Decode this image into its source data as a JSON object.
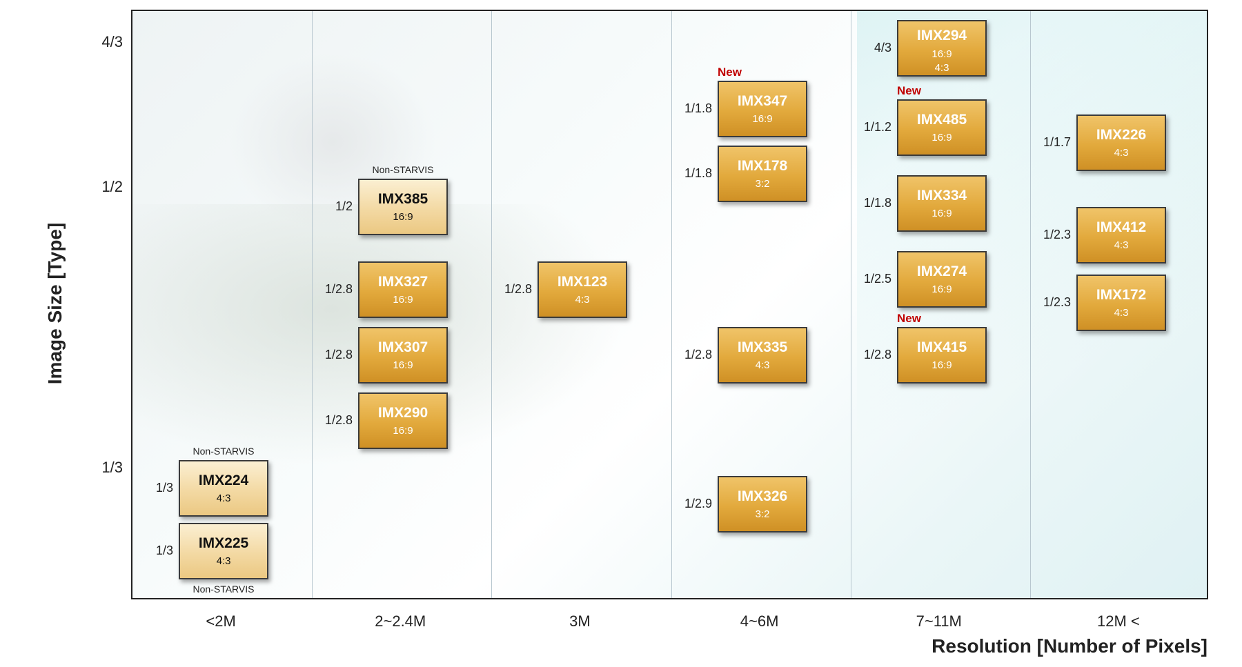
{
  "chart_data": {
    "type": "scatter",
    "title": "",
    "xlabel": "Resolution  [Number of Pixels]",
    "ylabel": "Image Size [Type]",
    "x_categories": [
      "<2M",
      "2~2.4M",
      "3M",
      "4~6M",
      "7~11M",
      "12M <"
    ],
    "y_ticks": [
      "4/3",
      "1/2",
      "1/3"
    ],
    "sensors": [
      {
        "name": "IMX224",
        "resolution": "<2M",
        "size": "1/3",
        "aspect": "4:3",
        "non_starvis": true,
        "new": false
      },
      {
        "name": "IMX225",
        "resolution": "<2M",
        "size": "1/3",
        "aspect": "4:3",
        "non_starvis": true,
        "new": false
      },
      {
        "name": "IMX385",
        "resolution": "2~2.4M",
        "size": "1/2",
        "aspect": "16:9",
        "non_starvis": true,
        "new": false
      },
      {
        "name": "IMX327",
        "resolution": "2~2.4M",
        "size": "1/2.8",
        "aspect": "16:9",
        "non_starvis": false,
        "new": false
      },
      {
        "name": "IMX307",
        "resolution": "2~2.4M",
        "size": "1/2.8",
        "aspect": "16:9",
        "non_starvis": false,
        "new": false
      },
      {
        "name": "IMX290",
        "resolution": "2~2.4M",
        "size": "1/2.8",
        "aspect": "16:9",
        "non_starvis": false,
        "new": false
      },
      {
        "name": "IMX123",
        "resolution": "3M",
        "size": "1/2.8",
        "aspect": "4:3",
        "non_starvis": false,
        "new": false
      },
      {
        "name": "IMX347",
        "resolution": "4~6M",
        "size": "1/1.8",
        "aspect": "16:9",
        "non_starvis": false,
        "new": true
      },
      {
        "name": "IMX178",
        "resolution": "4~6M",
        "size": "1/1.8",
        "aspect": "3:2",
        "non_starvis": false,
        "new": false
      },
      {
        "name": "IMX335",
        "resolution": "4~6M",
        "size": "1/2.8",
        "aspect": "4:3",
        "non_starvis": false,
        "new": false
      },
      {
        "name": "IMX326",
        "resolution": "4~6M",
        "size": "1/2.9",
        "aspect": "3:2",
        "non_starvis": false,
        "new": false
      },
      {
        "name": "IMX294",
        "resolution": "7~11M",
        "size": "4/3",
        "aspect": "16:9",
        "aspect2": "4:3",
        "non_starvis": false,
        "new": false
      },
      {
        "name": "IMX485",
        "resolution": "7~11M",
        "size": "1/1.2",
        "aspect": "16:9",
        "non_starvis": false,
        "new": true
      },
      {
        "name": "IMX334",
        "resolution": "7~11M",
        "size": "1/1.8",
        "aspect": "16:9",
        "non_starvis": false,
        "new": false
      },
      {
        "name": "IMX274",
        "resolution": "7~11M",
        "size": "1/2.5",
        "aspect": "16:9",
        "non_starvis": false,
        "new": false
      },
      {
        "name": "IMX415",
        "resolution": "7~11M",
        "size": "1/2.8",
        "aspect": "16:9",
        "non_starvis": false,
        "new": true
      },
      {
        "name": "IMX226",
        "resolution": "12M <",
        "size": "1/1.7",
        "aspect": "4:3",
        "non_starvis": false,
        "new": false
      },
      {
        "name": "IMX412",
        "resolution": "12M <",
        "size": "1/2.3",
        "aspect": "4:3",
        "non_starvis": false,
        "new": false
      },
      {
        "name": "IMX172",
        "resolution": "12M <",
        "size": "1/2.3",
        "aspect": "4:3",
        "non_starvis": false,
        "new": false
      }
    ],
    "labels": {
      "new": "New",
      "non_starvis": "Non-STARVIS"
    }
  }
}
